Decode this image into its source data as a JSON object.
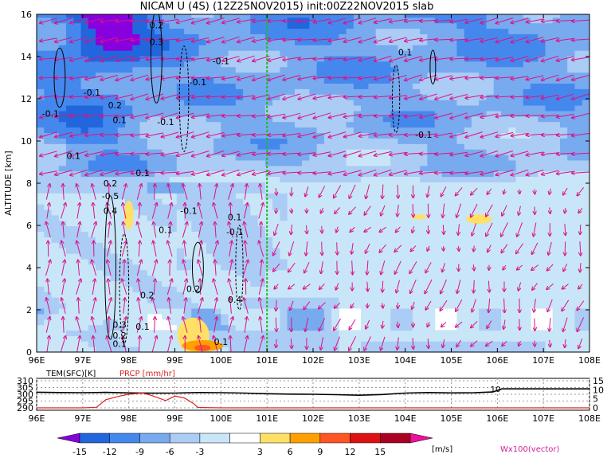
{
  "title": "NICAM U (4S) (12Z25NOV2015) init:00Z22NOV2015 slab",
  "chart_data": [
    {
      "type": "heatmap",
      "ylabel": "ALTITUDE [km]",
      "x_ticks": [
        "96E",
        "97E",
        "98E",
        "99E",
        "100E",
        "101E",
        "102E",
        "103E",
        "104E",
        "105E",
        "106E",
        "107E",
        "108E"
      ],
      "x_range": [
        96,
        108
      ],
      "y_ticks": [
        "0",
        "2",
        "4",
        "6",
        "8",
        "10",
        "12",
        "14",
        "16"
      ],
      "y_range": [
        0,
        16
      ],
      "marker_line_lon": 101,
      "marker_line_color": "#22bb22",
      "contour_labels": [
        {
          "text": "0.2",
          "lon": 98.6,
          "alt": 15.5
        },
        {
          "text": "0.3",
          "lon": 98.6,
          "alt": 14.7
        },
        {
          "text": "-0.1",
          "lon": 100.0,
          "alt": 13.8
        },
        {
          "text": "-0.1",
          "lon": 99.5,
          "alt": 12.8
        },
        {
          "text": "-0.1",
          "lon": 97.2,
          "alt": 12.3
        },
        {
          "text": "0.2",
          "lon": 97.7,
          "alt": 11.7
        },
        {
          "text": "-0.1",
          "lon": 96.3,
          "alt": 11.3
        },
        {
          "text": "0.1",
          "lon": 97.8,
          "alt": 11.0
        },
        {
          "text": "-0.1",
          "lon": 98.8,
          "alt": 10.9
        },
        {
          "text": "0.1",
          "lon": 96.8,
          "alt": 9.3
        },
        {
          "text": "0.1",
          "lon": 98.3,
          "alt": 8.5
        },
        {
          "text": "0.2",
          "lon": 97.6,
          "alt": 8.0
        },
        {
          "text": "-0.5",
          "lon": 97.6,
          "alt": 7.4
        },
        {
          "text": "0.4",
          "lon": 97.6,
          "alt": 6.7
        },
        {
          "text": "-0.1",
          "lon": 99.3,
          "alt": 6.7
        },
        {
          "text": "0.1",
          "lon": 100.3,
          "alt": 6.4
        },
        {
          "text": "0.1",
          "lon": 98.8,
          "alt": 5.8
        },
        {
          "text": "-0.1",
          "lon": 100.3,
          "alt": 5.7
        },
        {
          "text": "0.2",
          "lon": 98.4,
          "alt": 2.7
        },
        {
          "text": "0.2",
          "lon": 99.4,
          "alt": 3.0
        },
        {
          "text": "0.4",
          "lon": 100.3,
          "alt": 2.5
        },
        {
          "text": "0.3",
          "lon": 97.8,
          "alt": 1.3
        },
        {
          "text": "0.1",
          "lon": 98.3,
          "alt": 1.2
        },
        {
          "text": "0.2",
          "lon": 97.8,
          "alt": 0.8
        },
        {
          "text": "0.1",
          "lon": 97.8,
          "alt": 0.4
        },
        {
          "text": "0.1",
          "lon": 100.0,
          "alt": 0.5
        },
        {
          "text": "0.1",
          "lon": 104.0,
          "alt": 14.2
        },
        {
          "text": "-0.1",
          "lon": 104.4,
          "alt": 10.3
        }
      ],
      "vector_label": "Wx100(vector)",
      "vector_label_color": "#cc2299"
    },
    {
      "type": "line",
      "left_label": "TEM(SFC)[K]",
      "right_label": "PRCP [mm/hr]",
      "right_label_color": "#dd2222",
      "left_ticks": [
        "310",
        "305",
        "300",
        "295",
        "290"
      ],
      "left_range": [
        290,
        310
      ],
      "right_ticks": [
        "15",
        "10",
        "5",
        "0"
      ],
      "right_range": [
        0,
        15
      ],
      "x_ticks": [
        "96E",
        "97E",
        "98E",
        "99E",
        "100E",
        "101E",
        "102E",
        "103E",
        "104E",
        "105E",
        "106E",
        "107E",
        "108E"
      ],
      "annotation": "10",
      "series": [
        {
          "name": "TEM(SFC)",
          "color": "#000000",
          "x": [
            96,
            96.5,
            97,
            97.5,
            98,
            98.5,
            99,
            99.5,
            100,
            100.5,
            101,
            101.5,
            102,
            102.5,
            103,
            103.5,
            104,
            104.5,
            105,
            105.5,
            105.9,
            106.1,
            106.5,
            107,
            107.5,
            108
          ],
          "y": [
            301.5,
            301.3,
            301.2,
            301.4,
            301.0,
            300.8,
            300.9,
            301.3,
            301.2,
            300.9,
            300.4,
            300.1,
            300.0,
            299.7,
            299.3,
            299.8,
            300.9,
            301.3,
            301.0,
            301.1,
            301.7,
            304.0,
            304.0,
            304.0,
            304.0,
            304.0
          ]
        },
        {
          "name": "PRCP",
          "color": "#dd2222",
          "x": [
            96,
            97,
            97.3,
            97.5,
            97.8,
            98.0,
            98.3,
            98.5,
            98.8,
            99.0,
            99.2,
            99.4,
            99.5,
            100,
            101,
            102,
            108
          ],
          "y": [
            0,
            0,
            0.3,
            4.5,
            6.5,
            7.5,
            8.2,
            6.8,
            4.0,
            6.5,
            5.5,
            2.5,
            0.2,
            0,
            0,
            0,
            0
          ]
        }
      ]
    }
  ],
  "colorbar": {
    "levels": [
      "-15",
      "-12",
      "-9",
      "-6",
      "-3",
      "3",
      "6",
      "9",
      "12",
      "15"
    ],
    "colors": [
      "#8800dd",
      "#2266dd",
      "#4488ee",
      "#77aaee",
      "#aaccf5",
      "#c8e6f7",
      "#ffffff",
      "#ffe066",
      "#ffa000",
      "#ff5522",
      "#dd1111",
      "#aa0022",
      "#ee1199"
    ],
    "unit": "[m/s]"
  }
}
